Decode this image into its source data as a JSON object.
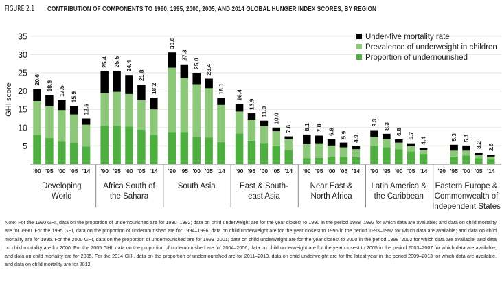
{
  "figure": {
    "number": "FIGURE 2.1",
    "title": "CONTRIBUTION OF COMPONENTS TO 1990, 1995, 2000, 2005, AND 2014 GLOBAL HUNGER INDEX SCORES, BY REGION"
  },
  "chart_data": {
    "type": "bar",
    "stacked": true,
    "title": "Contribution of components to 1990, 1995, 2000, 2005, and 2014 Global Hunger Index scores, by region",
    "xlabel": "",
    "ylabel": "GHI score",
    "ylim": [
      0,
      35
    ],
    "yticks": [
      5,
      10,
      15,
      20,
      25,
      30,
      35
    ],
    "grid": true,
    "legend_position": "top-right",
    "year_labels": [
      "'90",
      "'95",
      "'00",
      "'05",
      "'14"
    ],
    "colors": {
      "mortality": "#000000",
      "underweight": "#8dc87a",
      "undernourished": "#4eae3f",
      "grid": "#d9ecd2"
    },
    "legend": [
      {
        "key": "mortality",
        "label": "Under-five mortality rate"
      },
      {
        "key": "underweight",
        "label": "Prevalence of underweight in children"
      },
      {
        "key": "undernourished",
        "label": "Proportion of undernourished"
      }
    ],
    "groups": [
      {
        "region": [
          "Developing",
          "World"
        ],
        "totals": [
          20.6,
          18.9,
          17.5,
          15.9,
          12.5
        ],
        "undernourished": [
          8.0,
          7.2,
          6.3,
          5.9,
          4.8
        ],
        "underweight": [
          9.3,
          8.7,
          8.5,
          7.7,
          6.0
        ],
        "mortality": [
          3.3,
          3.0,
          2.7,
          2.3,
          1.7
        ]
      },
      {
        "region": [
          "Africa South of",
          "the Sahara"
        ],
        "totals": [
          25.4,
          25.5,
          24.4,
          21.8,
          18.2
        ],
        "undernourished": [
          10.5,
          10.5,
          10.3,
          9.4,
          8.0
        ],
        "underweight": [
          9.0,
          9.3,
          8.9,
          8.1,
          7.0
        ],
        "mortality": [
          5.9,
          5.7,
          5.2,
          4.3,
          3.2
        ]
      },
      {
        "region": [
          "South Asia"
        ],
        "totals": [
          30.6,
          27.3,
          25.0,
          23.4,
          18.1
        ],
        "undernourished": [
          8.8,
          8.8,
          7.4,
          7.3,
          6.0
        ],
        "underweight": [
          17.6,
          14.8,
          14.5,
          13.5,
          10.2
        ],
        "mortality": [
          4.2,
          3.7,
          3.1,
          2.6,
          1.9
        ]
      },
      {
        "region": [
          "East & South-",
          "east Asia"
        ],
        "totals": [
          16.4,
          13.9,
          11.9,
          10.0,
          7.6
        ],
        "undernourished": [
          8.4,
          6.4,
          5.8,
          5.1,
          3.9
        ],
        "underweight": [
          6.0,
          5.8,
          4.7,
          3.9,
          3.0
        ],
        "mortality": [
          2.0,
          1.7,
          1.4,
          1.0,
          0.7
        ]
      },
      {
        "region": [
          "Near East &",
          "North Africa"
        ],
        "totals": [
          8.1,
          7.8,
          6.8,
          5.9,
          4.9
        ],
        "undernourished": [
          1.6,
          1.7,
          1.9,
          2.0,
          1.9
        ],
        "underweight": [
          4.0,
          4.0,
          3.2,
          2.6,
          2.2
        ],
        "mortality": [
          2.5,
          2.1,
          1.7,
          1.3,
          0.8
        ]
      },
      {
        "region": [
          "Latin America &",
          "the Caribbean"
        ],
        "totals": [
          9.3,
          8.3,
          6.8,
          5.7,
          4.4
        ],
        "undernourished": [
          5.0,
          4.6,
          4.1,
          3.5,
          2.8
        ],
        "underweight": [
          2.5,
          2.3,
          1.8,
          1.4,
          1.0
        ],
        "mortality": [
          1.8,
          1.4,
          0.9,
          0.8,
          0.6
        ]
      },
      {
        "region": [
          "Eastern Europe &",
          "Commonwealth of",
          "Independent States"
        ],
        "totals": [
          null,
          5.3,
          5.1,
          3.2,
          2.6
        ],
        "undernourished": [
          null,
          2.1,
          2.4,
          1.6,
          1.3
        ],
        "underweight": [
          null,
          1.6,
          1.3,
          0.9,
          0.8
        ],
        "mortality": [
          null,
          1.6,
          1.4,
          0.7,
          0.5
        ]
      }
    ]
  },
  "note": "Note: For the 1990 GHI, data on the proportion of undernourished are for 1990–1992; data on child underweight are for the year closest to 1990 in the period 1988–1992 for which data are available; and data on child mortality are for 1990. For the 1995 GHI, data on the proportion of undernourished are for 1994–1996; data on child underweight are for the year closest to 1995 in the period 1993–1997 for which data are available; and data on child mortality are for 1995. For the 2000 GHI, data on the proportion of undernourished are for 1999–2001; data on child underweight are for the year closest to 2000 in the period 1998–2002 for which data are available; and data on child mortality are for 2000. For the 2005 GHI, data on the proportion of undernourished are for 2004–2006; data on child underweight are for the year closest to 2005 in the period 2003–2007 for which data are available; and data on child mortality are for 2005. For the 2014 GHI, data on the proportion of undernourished are for 2011–2013, data on child underweight are for the latest year in the period 2009–2013 for which data are available, and data on child mortality are for 2012."
}
